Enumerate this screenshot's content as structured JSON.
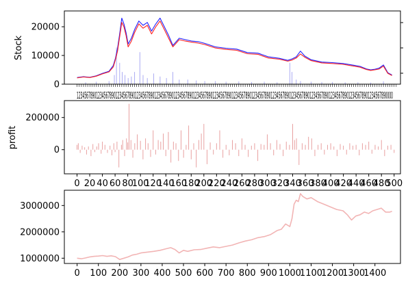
{
  "chart_data": [
    {
      "type": "line",
      "ylabel": "Stock",
      "xlabel": "",
      "xlim": [
        -60,
        1520
      ],
      "ylim": [
        0,
        25500
      ],
      "yticks": [
        0,
        10000,
        20000
      ],
      "xtick_text": "1234567890123456789012345678901234567890123456789012345678901234567890123456789012345678901234567890123456789012345678901234567890123456789012345678901234567890000",
      "secondary_axis": {
        "ticks_visible": true,
        "labels_visible": false
      },
      "series": [
        {
          "role": "close-up",
          "color": "#1f1fff",
          "x": [
            0,
            30,
            60,
            90,
            120,
            150,
            170,
            180,
            190,
            200,
            210,
            220,
            230,
            240,
            255,
            270,
            290,
            310,
            330,
            350,
            370,
            390,
            410,
            430,
            450,
            480,
            510,
            540,
            570,
            600,
            650,
            700,
            750,
            800,
            850,
            900,
            950,
            990,
            1010,
            1030,
            1050,
            1070,
            1100,
            1150,
            1200,
            1250,
            1300,
            1330,
            1360,
            1380,
            1400,
            1420,
            1440,
            1460,
            1480
          ],
          "values": [
            2300,
            2600,
            2400,
            2900,
            3800,
            4500,
            6500,
            9000,
            12500,
            17500,
            23000,
            21000,
            18000,
            14000,
            16000,
            19000,
            22000,
            20500,
            21500,
            18500,
            21000,
            23000,
            20000,
            17000,
            13500,
            16000,
            15500,
            15000,
            14800,
            14200,
            13000,
            12500,
            12200,
            11000,
            10800,
            9500,
            9000,
            8300,
            8800,
            9500,
            11500,
            9800,
            8500,
            7700,
            7500,
            7200,
            6600,
            6200,
            5300,
            5000,
            5200,
            5600,
            6700,
            4000,
            3200
          ]
        },
        {
          "role": "close-down",
          "color": "#ff1f1f",
          "x": [
            0,
            30,
            60,
            90,
            120,
            150,
            170,
            180,
            190,
            200,
            210,
            220,
            230,
            240,
            255,
            270,
            290,
            310,
            330,
            350,
            370,
            390,
            410,
            430,
            450,
            480,
            510,
            540,
            570,
            600,
            650,
            700,
            750,
            800,
            850,
            900,
            950,
            990,
            1010,
            1030,
            1050,
            1070,
            1100,
            1150,
            1200,
            1250,
            1300,
            1330,
            1360,
            1380,
            1400,
            1420,
            1440,
            1460,
            1480
          ],
          "values": [
            2200,
            2500,
            2300,
            2800,
            3600,
            4300,
            6000,
            8500,
            11500,
            16500,
            21500,
            20000,
            17000,
            13000,
            15000,
            18000,
            21000,
            19500,
            20500,
            17500,
            20000,
            22000,
            19000,
            16000,
            13000,
            15500,
            15000,
            14600,
            14300,
            13800,
            12600,
            12100,
            11800,
            10600,
            10400,
            9100,
            8700,
            8000,
            8400,
            9100,
            10500,
            9400,
            8200,
            7400,
            7200,
            6900,
            6300,
            5900,
            5100,
            4800,
            5000,
            5300,
            6300,
            3800,
            3000
          ]
        }
      ],
      "volume": {
        "color": "#8888ee",
        "x": [
          40,
          90,
          150,
          175,
          185,
          200,
          212,
          225,
          240,
          255,
          270,
          295,
          310,
          330,
          360,
          390,
          420,
          450,
          480,
          520,
          560,
          600,
          650,
          700,
          760,
          820,
          880,
          940,
          1000,
          1010,
          1030,
          1050,
          1100,
          1150,
          1200,
          1260,
          1320,
          1380,
          1440
        ],
        "values": [
          600,
          800,
          1000,
          3000,
          12000,
          7000,
          4000,
          3000,
          2000,
          2500,
          4000,
          10500,
          3000,
          2000,
          3500,
          2500,
          2000,
          4000,
          1500,
          1500,
          1200,
          1000,
          1000,
          800,
          900,
          700,
          800,
          600,
          7000,
          4000,
          1500,
          1000,
          800,
          700,
          700,
          600,
          600,
          500,
          900
        ]
      }
    },
    {
      "type": "bar",
      "ylabel": "profit",
      "xlabel": "",
      "xlim": [
        -20,
        510
      ],
      "ylim": [
        -150000,
        305000
      ],
      "yticks": [
        0,
        200000
      ],
      "xticks": [
        0,
        20,
        40,
        60,
        80,
        100,
        120,
        140,
        160,
        180,
        200,
        220,
        240,
        260,
        280,
        300,
        320,
        340,
        360,
        380,
        400,
        420,
        440,
        460,
        480,
        500
      ],
      "xtick_labels": [
        "0",
        "20",
        "40",
        "60",
        "80",
        "100",
        "120",
        "140",
        "160",
        "180",
        "200",
        "220",
        "240",
        "260",
        "280",
        "300",
        "320",
        "340",
        "360",
        "380",
        "400",
        "420",
        "440",
        "460",
        "480",
        "500"
      ],
      "color": "#e8a0a0",
      "x": [
        0,
        2,
        5,
        8,
        12,
        15,
        18,
        22,
        25,
        28,
        31,
        34,
        38,
        40,
        44,
        48,
        52,
        55,
        58,
        60,
        63,
        66,
        70,
        72,
        75,
        78,
        80,
        82,
        85,
        88,
        91,
        95,
        100,
        104,
        108,
        112,
        116,
        120,
        124,
        128,
        132,
        136,
        140,
        144,
        148,
        152,
        156,
        160,
        164,
        168,
        172,
        176,
        180,
        184,
        188,
        192,
        196,
        200,
        205,
        210,
        215,
        220,
        225,
        230,
        235,
        240,
        245,
        250,
        255,
        260,
        265,
        270,
        275,
        280,
        285,
        290,
        295,
        300,
        305,
        310,
        315,
        320,
        325,
        330,
        335,
        340,
        343,
        346,
        350,
        355,
        360,
        365,
        370,
        375,
        380,
        385,
        390,
        395,
        400,
        405,
        410,
        415,
        420,
        425,
        430,
        435,
        440,
        445,
        450,
        455,
        460,
        465,
        470,
        475,
        480,
        485,
        490,
        495,
        500
      ],
      "values": [
        30000,
        40000,
        -20000,
        25000,
        15000,
        -30000,
        20000,
        -40000,
        35000,
        -15000,
        20000,
        40000,
        -25000,
        50000,
        30000,
        -20000,
        25000,
        -35000,
        40000,
        -15000,
        50000,
        -110000,
        30000,
        60000,
        -40000,
        70000,
        45000,
        285000,
        60000,
        -50000,
        40000,
        95000,
        55000,
        -60000,
        70000,
        40000,
        -45000,
        120000,
        -30000,
        60000,
        50000,
        100000,
        -40000,
        110000,
        -80000,
        50000,
        40000,
        -70000,
        120000,
        -50000,
        30000,
        150000,
        -60000,
        40000,
        -110000,
        60000,
        100000,
        160000,
        -90000,
        45000,
        -30000,
        40000,
        120000,
        -50000,
        30000,
        -35000,
        60000,
        40000,
        -40000,
        70000,
        30000,
        -45000,
        25000,
        40000,
        -70000,
        35000,
        30000,
        95000,
        40000,
        -35000,
        60000,
        35000,
        -40000,
        50000,
        30000,
        160000,
        60000,
        70000,
        -95000,
        40000,
        30000,
        80000,
        70000,
        -40000,
        30000,
        40000,
        -30000,
        30000,
        40000,
        20000,
        -40000,
        35000,
        25000,
        -30000,
        40000,
        25000,
        30000,
        -35000,
        40000,
        30000,
        50000,
        -25000,
        30000,
        20000,
        60000,
        -40000,
        25000,
        30000,
        -20000
      ]
    },
    {
      "type": "line",
      "ylabel": "",
      "xlabel": "",
      "xlim": [
        -60,
        1520
      ],
      "ylim": [
        800000,
        3580000
      ],
      "yticks": [
        1000000,
        2000000,
        3000000
      ],
      "ytick_labels": [
        "1000000",
        "2000000",
        "3000000"
      ],
      "xticks": [
        0,
        100,
        200,
        300,
        400,
        500,
        600,
        700,
        800,
        900,
        1000,
        1100,
        1200,
        1300,
        1400
      ],
      "xtick_labels": [
        "0",
        "100",
        "200",
        "300",
        "400",
        "500",
        "600",
        "700",
        "800",
        "900",
        "1000",
        "1100",
        "1200",
        "1300",
        "1400"
      ],
      "color": "#f2b4b4",
      "x": [
        0,
        20,
        40,
        60,
        80,
        100,
        120,
        140,
        160,
        180,
        200,
        220,
        240,
        260,
        280,
        300,
        330,
        360,
        390,
        420,
        440,
        460,
        480,
        500,
        520,
        550,
        580,
        610,
        640,
        670,
        700,
        730,
        760,
        790,
        820,
        850,
        880,
        910,
        940,
        960,
        980,
        1000,
        1010,
        1020,
        1030,
        1040,
        1050,
        1060,
        1080,
        1100,
        1130,
        1160,
        1190,
        1220,
        1250,
        1270,
        1290,
        1310,
        1330,
        1350,
        1370,
        1390,
        1410,
        1430,
        1450,
        1470,
        1480
      ],
      "values": [
        1000000,
        980000,
        1010000,
        1050000,
        1070000,
        1080000,
        1100000,
        1070000,
        1090000,
        1060000,
        950000,
        1000000,
        1050000,
        1120000,
        1150000,
        1200000,
        1230000,
        1260000,
        1300000,
        1360000,
        1400000,
        1330000,
        1200000,
        1300000,
        1260000,
        1320000,
        1330000,
        1380000,
        1430000,
        1400000,
        1450000,
        1500000,
        1580000,
        1650000,
        1700000,
        1780000,
        1820000,
        1900000,
        2050000,
        2100000,
        2300000,
        2200000,
        2500000,
        3050000,
        3200000,
        3150000,
        3450000,
        3350000,
        3250000,
        3300000,
        3150000,
        3050000,
        2950000,
        2850000,
        2800000,
        2650000,
        2450000,
        2600000,
        2650000,
        2750000,
        2700000,
        2800000,
        2850000,
        2900000,
        2750000,
        2750000,
        2780000
      ]
    }
  ]
}
